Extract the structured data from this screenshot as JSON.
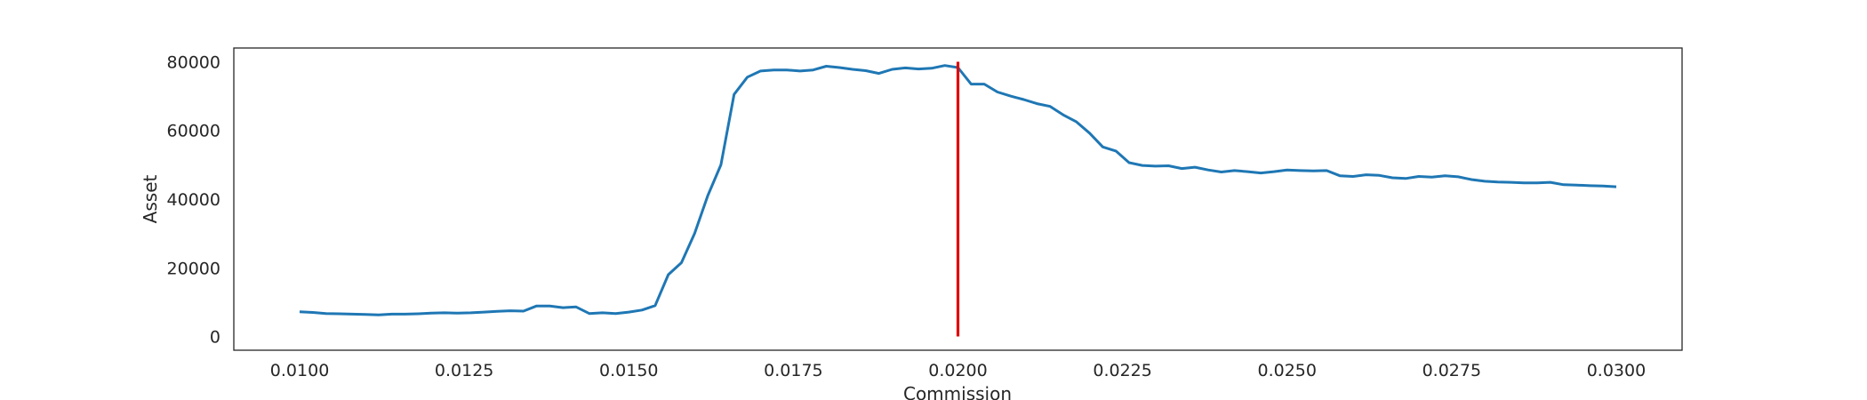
{
  "chart_data": {
    "type": "line",
    "title": "",
    "xlabel": "Commission",
    "ylabel": "Asset",
    "xlim": [
      0.009,
      0.031
    ],
    "ylim": [
      -4000,
      84000
    ],
    "x_ticks": [
      0.01,
      0.0125,
      0.015,
      0.0175,
      0.02,
      0.0225,
      0.025,
      0.0275,
      0.03
    ],
    "x_tick_labels": [
      "0.0100",
      "0.0125",
      "0.0150",
      "0.0175",
      "0.0200",
      "0.0225",
      "0.0250",
      "0.0275",
      "0.0300"
    ],
    "y_ticks": [
      0,
      20000,
      40000,
      60000,
      80000
    ],
    "y_tick_labels": [
      "0",
      "20000",
      "40000",
      "60000",
      "80000"
    ],
    "grid": false,
    "series": [
      {
        "color": "#1f77b4",
        "x": [
          0.01,
          0.0102,
          0.0104,
          0.0106,
          0.0108,
          0.011,
          0.0112,
          0.0114,
          0.0116,
          0.0118,
          0.012,
          0.0122,
          0.0124,
          0.0126,
          0.0128,
          0.013,
          0.0132,
          0.0134,
          0.0136,
          0.0138,
          0.014,
          0.0142,
          0.0144,
          0.0146,
          0.0148,
          0.015,
          0.0152,
          0.0154,
          0.0156,
          0.0158,
          0.016,
          0.0162,
          0.0164,
          0.0166,
          0.0168,
          0.017,
          0.0172,
          0.0174,
          0.0176,
          0.0178,
          0.018,
          0.0182,
          0.0184,
          0.0186,
          0.0188,
          0.019,
          0.0192,
          0.0194,
          0.0196,
          0.0198,
          0.02,
          0.0202,
          0.0204,
          0.0206,
          0.0208,
          0.021,
          0.0212,
          0.0214,
          0.0216,
          0.0218,
          0.022,
          0.0222,
          0.0224,
          0.0226,
          0.0228,
          0.023,
          0.0232,
          0.0234,
          0.0236,
          0.0238,
          0.024,
          0.0242,
          0.0244,
          0.0246,
          0.0248,
          0.025,
          0.0252,
          0.0254,
          0.0256,
          0.0258,
          0.026,
          0.0262,
          0.0264,
          0.0266,
          0.0268,
          0.027,
          0.0272,
          0.0274,
          0.0276,
          0.0278,
          0.028,
          0.0282,
          0.0284,
          0.0286,
          0.0288,
          0.029,
          0.0292,
          0.0294,
          0.0296,
          0.0298,
          0.03
        ],
        "y": [
          7200,
          7000,
          6700,
          6600,
          6500,
          6400,
          6300,
          6500,
          6500,
          6600,
          6800,
          6900,
          6800,
          6900,
          7100,
          7300,
          7500,
          7400,
          8900,
          8900,
          8400,
          8600,
          6700,
          6900,
          6700,
          7100,
          7700,
          9000,
          18000,
          21500,
          30000,
          41000,
          50000,
          70500,
          75500,
          77300,
          77600,
          77600,
          77300,
          77600,
          78700,
          78300,
          77800,
          77400,
          76600,
          77800,
          78200,
          77900,
          78100,
          78900,
          78300,
          73500,
          73500,
          71200,
          70000,
          69000,
          67800,
          67000,
          64500,
          62500,
          59200,
          55200,
          54000,
          50600,
          49800,
          49600,
          49700,
          48900,
          49300,
          48500,
          47900,
          48300,
          48000,
          47600,
          48000,
          48500,
          48300,
          48200,
          48300,
          46800,
          46600,
          47100,
          46900,
          46200,
          46000,
          46600,
          46400,
          46800,
          46500,
          45700,
          45200,
          45000,
          44900,
          44700,
          44700,
          44900,
          44200,
          44100,
          43900,
          43800,
          43600
        ]
      }
    ],
    "vline": {
      "x": 0.02,
      "y_from": 0,
      "y_to": 80000,
      "color": "#e00000"
    }
  }
}
